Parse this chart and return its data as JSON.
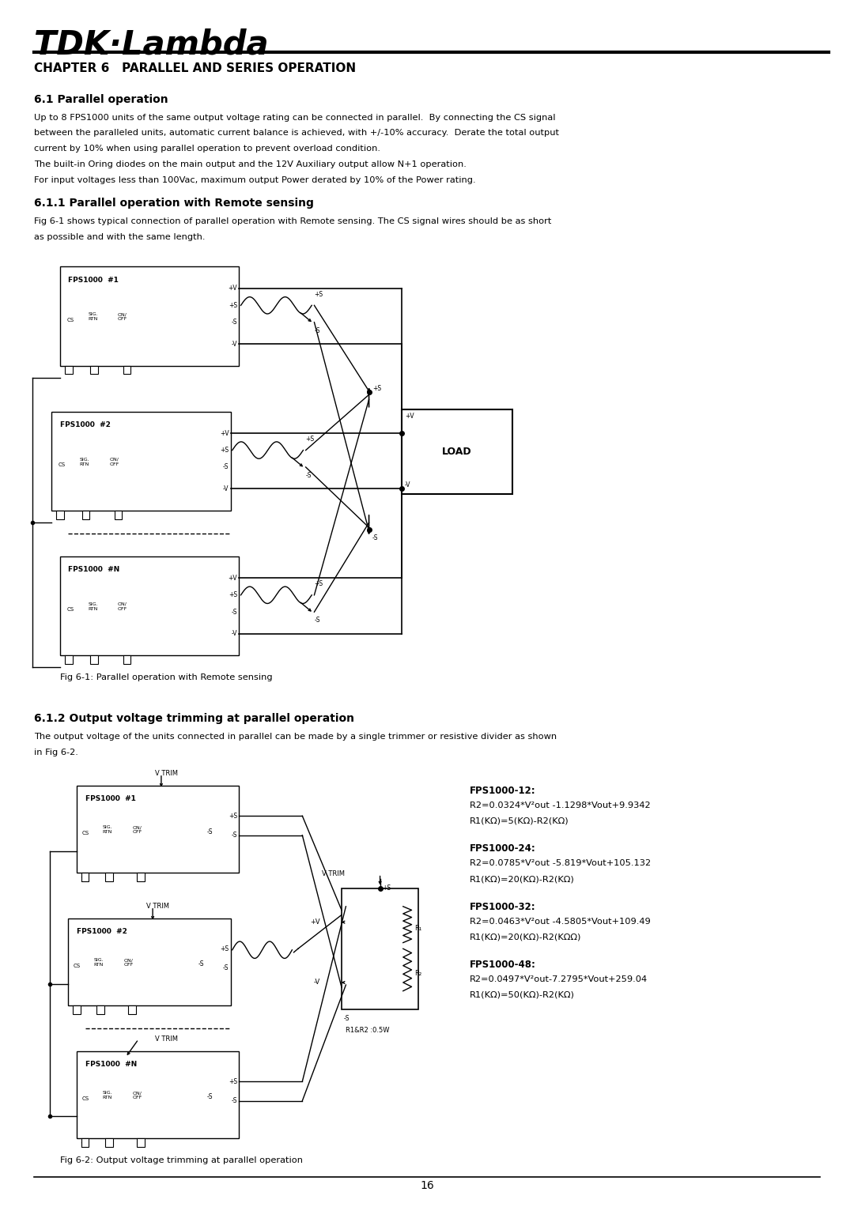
{
  "page_width": 10.8,
  "page_height": 15.27,
  "bg_color": "#ffffff",
  "logo_text": "TDK·Lambda",
  "chapter_title": "CHAPTER 6   PARALLEL AND SERIES OPERATION",
  "section_61_title": "6.1 Parallel operation",
  "section_61_body": [
    "Up to 8 FPS1000 units of the same output voltage rating can be connected in parallel.  By connecting the CS signal",
    "between the paralleled units, automatic current balance is achieved, with +/-10% accuracy.  Derate the total output",
    "current by 10% when using parallel operation to prevent overload condition.",
    "The built-in Oring diodes on the main output and the 12V Auxiliary output allow N+1 operation.",
    "For input voltages less than 100Vac, maximum output Power derated by 10% of the Power rating."
  ],
  "section_611_title": "6.1.1 Parallel operation with Remote sensing",
  "section_611_body": [
    "Fig 6-1 shows typical connection of parallel operation with Remote sensing. The CS signal wires should be as short",
    "as possible and with the same length."
  ],
  "fig1_caption": "Fig 6-1: Parallel operation with Remote sensing",
  "section_612_title": "6.1.2 Output voltage trimming at parallel operation",
  "section_612_body": [
    "The output voltage of the units connected in parallel can be made by a single trimmer or resistive divider as shown",
    "in Fig 6-2."
  ],
  "fig2_caption": "Fig 6-2: Output voltage trimming at parallel operation",
  "formulas": [
    {
      "model": "FPS1000-12:",
      "line1": "R2=0.0324*V²out -1.1298*Vout+9.9342",
      "line2": "R1(KΩ)=5(KΩ)-R2(KΩ)"
    },
    {
      "model": "FPS1000-24:",
      "line1": "R2=0.0785*V²out -5.819*Vout+105.132",
      "line2": "R1(KΩ)=20(KΩ)-R2(KΩ)"
    },
    {
      "model": "FPS1000-32:",
      "line1": "R2=0.0463*V²out -4.5805*Vout+109.49",
      "line2": "R1(KΩ)=20(KΩ)-R2(KΩΩ)"
    },
    {
      "model": "FPS1000-48:",
      "line1": "R2=0.0497*V²out-7.2795*Vout+259.04",
      "line2": "R1(KΩ)=50(KΩ)-R2(KΩ)"
    }
  ],
  "page_number": "16"
}
